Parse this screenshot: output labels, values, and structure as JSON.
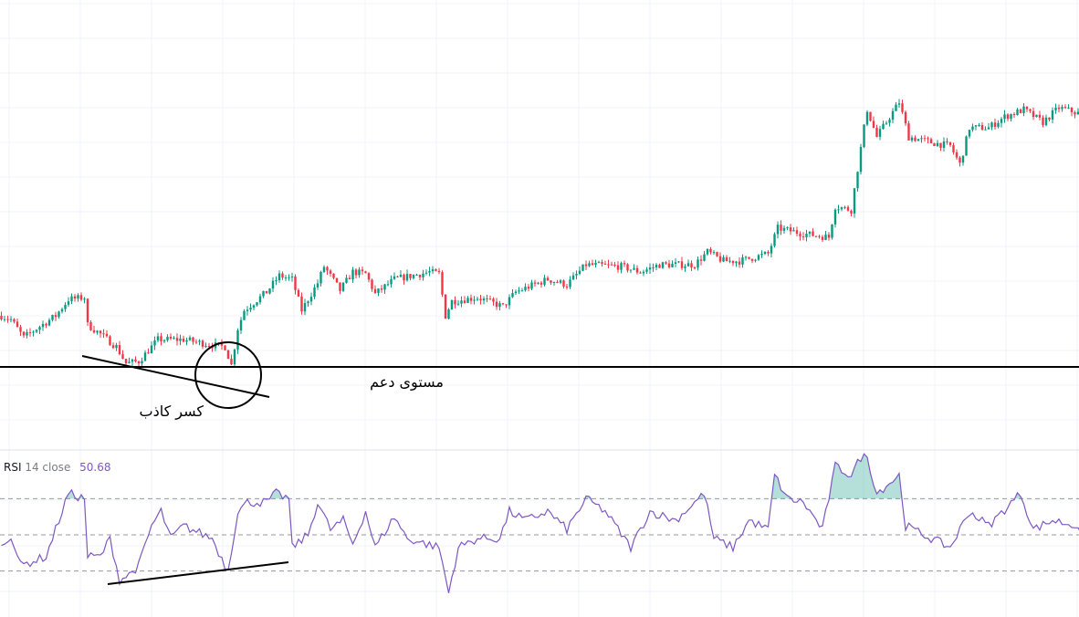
{
  "colors": {
    "up": "#089981",
    "down": "#f23645",
    "rsi": "#7e57c2",
    "grid": "#f0f3fa",
    "annotation": "#000000"
  },
  "rsi_legend": {
    "name": "RSI",
    "params": "14 close",
    "value": "50.68"
  },
  "annotations": {
    "support_label": "مستوى دعم",
    "false_break_label": "كسر كاذب"
  },
  "chart_data": [
    {
      "type": "candlestick",
      "title": "",
      "grid": true,
      "close_anchors": [
        [
          0,
          127
        ],
        [
          3,
          125
        ],
        [
          7,
          115
        ],
        [
          11,
          120
        ],
        [
          17,
          127
        ],
        [
          21,
          136
        ],
        [
          26,
          137
        ],
        [
          27,
          122
        ],
        [
          31,
          117
        ],
        [
          36,
          110
        ],
        [
          39,
          101
        ],
        [
          43,
          102
        ],
        [
          49,
          114
        ],
        [
          57,
          114
        ],
        [
          66,
          111
        ],
        [
          70,
          110
        ],
        [
          72,
          100
        ],
        [
          74,
          120
        ],
        [
          76,
          130
        ],
        [
          83,
          140
        ],
        [
          87,
          149
        ],
        [
          91,
          147
        ],
        [
          94,
          130
        ],
        [
          99,
          145
        ],
        [
          101,
          154
        ],
        [
          106,
          141
        ],
        [
          110,
          151
        ],
        [
          114,
          150
        ],
        [
          117,
          139
        ],
        [
          123,
          147
        ],
        [
          134,
          151
        ],
        [
          137,
          150
        ],
        [
          139,
          127
        ],
        [
          141,
          135
        ],
        [
          149,
          137
        ],
        [
          157,
          132
        ],
        [
          161,
          140
        ],
        [
          171,
          147
        ],
        [
          177,
          144
        ],
        [
          183,
          155
        ],
        [
          194,
          154
        ],
        [
          200,
          151
        ],
        [
          206,
          155
        ],
        [
          217,
          155
        ],
        [
          221,
          162
        ],
        [
          226,
          157
        ],
        [
          231,
          157
        ],
        [
          240,
          161
        ],
        [
          243,
          175
        ],
        [
          251,
          172
        ],
        [
          259,
          170
        ],
        [
          261,
          187
        ],
        [
          266,
          185
        ],
        [
          270,
          230
        ],
        [
          271,
          240
        ],
        [
          274,
          225
        ],
        [
          281,
          244
        ],
        [
          284,
          225
        ],
        [
          291,
          222
        ],
        [
          297,
          220
        ],
        [
          300,
          210
        ],
        [
          303,
          230
        ],
        [
          309,
          230
        ],
        [
          314,
          236
        ],
        [
          320,
          240
        ],
        [
          326,
          233
        ],
        [
          331,
          241
        ],
        [
          337,
          238
        ]
      ],
      "support_level": "horizontal line",
      "annotation_shapes": [
        "support line",
        "descending trendline",
        "circle around false break"
      ]
    },
    {
      "type": "line",
      "series": [
        {
          "name": "RSI",
          "values_anchors": [
            [
              0,
              43
            ],
            [
              3,
              50
            ],
            [
              6,
              33
            ],
            [
              14,
              38
            ],
            [
              19,
              63
            ],
            [
              21,
              73
            ],
            [
              26,
              70
            ],
            [
              27,
              38
            ],
            [
              31,
              38
            ],
            [
              34,
              48
            ],
            [
              37,
              25
            ],
            [
              40,
              28
            ],
            [
              43,
              33
            ],
            [
              47,
              55
            ],
            [
              50,
              63
            ],
            [
              53,
              48
            ],
            [
              57,
              55
            ],
            [
              66,
              48
            ],
            [
              70,
              33
            ],
            [
              71,
              31
            ],
            [
              74,
              63
            ],
            [
              77,
              68
            ],
            [
              83,
              68
            ],
            [
              86,
              73
            ],
            [
              90,
              70
            ],
            [
              91,
              43
            ],
            [
              96,
              50
            ],
            [
              99,
              68
            ],
            [
              103,
              53
            ],
            [
              107,
              58
            ],
            [
              110,
              45
            ],
            [
              114,
              63
            ],
            [
              117,
              43
            ],
            [
              123,
              60
            ],
            [
              127,
              48
            ],
            [
              137,
              43
            ],
            [
              140,
              18
            ],
            [
              143,
              43
            ],
            [
              149,
              48
            ],
            [
              156,
              48
            ],
            [
              159,
              63
            ],
            [
              164,
              58
            ],
            [
              171,
              63
            ],
            [
              177,
              53
            ],
            [
              183,
              70
            ],
            [
              189,
              63
            ],
            [
              197,
              43
            ],
            [
              203,
              63
            ],
            [
              211,
              58
            ],
            [
              220,
              73
            ],
            [
              223,
              48
            ],
            [
              229,
              43
            ],
            [
              234,
              58
            ],
            [
              240,
              53
            ],
            [
              242,
              83
            ],
            [
              246,
              70
            ],
            [
              251,
              68
            ],
            [
              257,
              53
            ],
            [
              261,
              88
            ],
            [
              266,
              83
            ],
            [
              269,
              93
            ],
            [
              271,
              93
            ],
            [
              274,
              73
            ],
            [
              281,
              83
            ],
            [
              283,
              55
            ],
            [
              291,
              48
            ],
            [
              297,
              43
            ],
            [
              303,
              63
            ],
            [
              309,
              55
            ],
            [
              319,
              73
            ],
            [
              323,
              53
            ],
            [
              329,
              58
            ],
            [
              337,
              55
            ],
            [
              338,
              50.68
            ]
          ]
        }
      ],
      "levels": [
        70,
        50,
        30
      ],
      "ylim": [
        0,
        100
      ]
    }
  ]
}
